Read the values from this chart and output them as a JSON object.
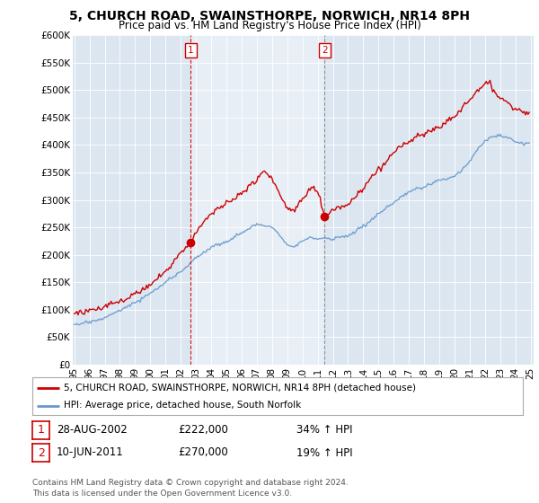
{
  "title": "5, CHURCH ROAD, SWAINSTHORPE, NORWICH, NR14 8PH",
  "subtitle": "Price paid vs. HM Land Registry's House Price Index (HPI)",
  "ylim": [
    0,
    600000
  ],
  "yticks": [
    0,
    50000,
    100000,
    150000,
    200000,
    250000,
    300000,
    350000,
    400000,
    450000,
    500000,
    550000,
    600000
  ],
  "ytick_labels": [
    "£0",
    "£50K",
    "£100K",
    "£150K",
    "£200K",
    "£250K",
    "£300K",
    "£350K",
    "£400K",
    "£450K",
    "£500K",
    "£550K",
    "£600K"
  ],
  "sale1_date": "28-AUG-2002",
  "sale1_price": 222000,
  "sale1_hpi": "34% ↑ HPI",
  "sale1_x": 2002.646,
  "sale2_date": "10-JUN-2011",
  "sale2_price": 270000,
  "sale2_hpi": "19% ↑ HPI",
  "sale2_x": 2011.458,
  "legend1": "5, CHURCH ROAD, SWAINSTHORPE, NORWICH, NR14 8PH (detached house)",
  "legend2": "HPI: Average price, detached house, South Norfolk",
  "footnote": "Contains HM Land Registry data © Crown copyright and database right 2024.\nThis data is licensed under the Open Government Licence v3.0.",
  "line_color_red": "#cc0000",
  "line_color_blue": "#6699cc",
  "bg_color": "#dce6f1",
  "shade_color": "#dce6f1",
  "sale_vline1_color": "#cc0000",
  "sale_vline2_color": "#888888",
  "grid_color": "#ffffff",
  "xstart": 1995,
  "xend": 2025
}
